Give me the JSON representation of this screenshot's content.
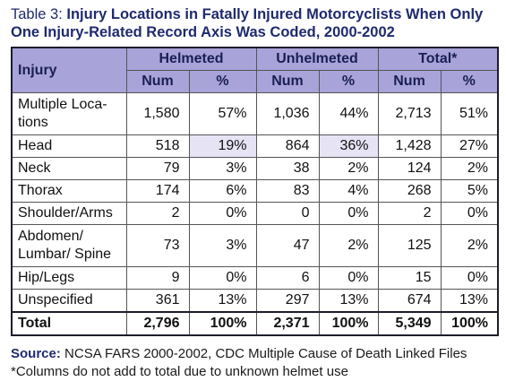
{
  "title": {
    "prefix": "Table 3:",
    "text": "Injury Locations in Fatally Injured Motorcyclists When Only One Injury-Related Record Axis Was Coded, 2000-2002"
  },
  "table": {
    "group_headers": [
      "Injury",
      "Helmeted",
      "Unhelmeted",
      "Total*"
    ],
    "sub_headers": [
      "Num",
      "%",
      "Num",
      "%",
      "Num",
      "%"
    ],
    "rows": [
      [
        "Multiple Loca-tions",
        "1,580",
        "57%",
        "1,036",
        "44%",
        "2,713",
        "51%"
      ],
      [
        "Head",
        "518",
        "19%",
        "864",
        "36%",
        "1,428",
        "27%"
      ],
      [
        "Neck",
        "79",
        "3%",
        "38",
        "2%",
        "124",
        "2%"
      ],
      [
        "Thorax",
        "174",
        "6%",
        "83",
        "4%",
        "268",
        "5%"
      ],
      [
        "Shoulder/Arms",
        "2",
        "0%",
        "0",
        "0%",
        "2",
        "0%"
      ],
      [
        "Abdomen/ Lumbar/ Spine",
        "73",
        "3%",
        "47",
        "2%",
        "125",
        "2%"
      ],
      [
        "Hip/Legs",
        "9",
        "0%",
        "6",
        "0%",
        "15",
        "0%"
      ],
      [
        "Unspecified",
        "361",
        "13%",
        "297",
        "13%",
        "674",
        "13%"
      ]
    ],
    "total": [
      "Total",
      "2,796",
      "100%",
      "2,371",
      "100%",
      "5,349",
      "100%"
    ]
  },
  "source": {
    "label": "Source:",
    "text": "NCSA FARS 2000-2002, CDC Multiple Cause of Death Linked Files"
  },
  "footnote": "*Columns do not add to total due to unknown helmet use"
}
